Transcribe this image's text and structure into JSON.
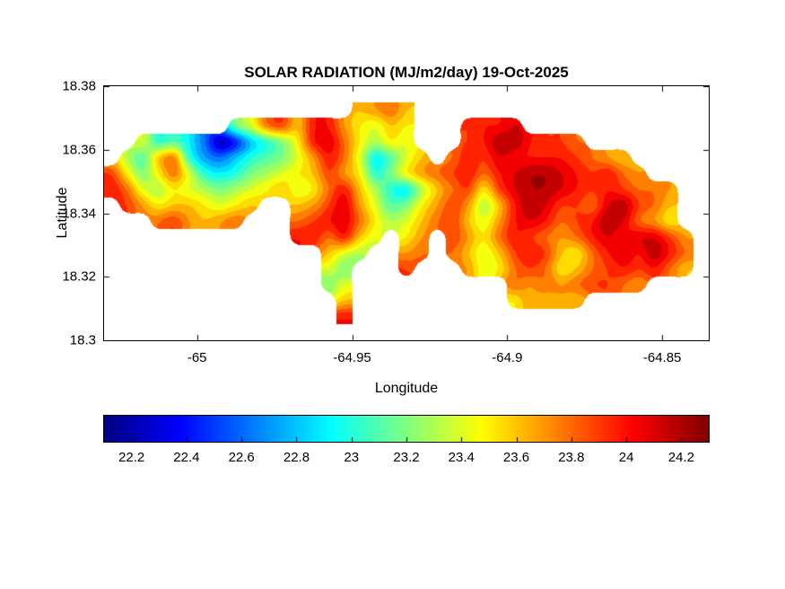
{
  "page": {
    "background": "#ffffff"
  },
  "chart_data": {
    "type": "heatmap",
    "title": "SOLAR RADIATION (MJ/m2/day) 19-Oct-2025",
    "xlabel": "Longitude",
    "ylabel": "Latitude",
    "xlim": [
      -65.03,
      -64.835
    ],
    "ylim": [
      18.3,
      18.38
    ],
    "grid_on": false,
    "colormap": "jet",
    "contour_interval": 0.1,
    "x_ticks": [
      {
        "value": -65,
        "label": "-65"
      },
      {
        "value": -64.95,
        "label": "-64.95"
      },
      {
        "value": -64.9,
        "label": "-64.9"
      },
      {
        "value": -64.85,
        "label": "-64.85"
      }
    ],
    "y_ticks": [
      {
        "value": 18.38,
        "label": "18.38"
      },
      {
        "value": 18.36,
        "label": "18.36"
      },
      {
        "value": 18.34,
        "label": "18.34"
      },
      {
        "value": 18.32,
        "label": "18.32"
      },
      {
        "value": 18.3,
        "label": "18.3"
      }
    ],
    "colorbar": {
      "orientation": "horizontal",
      "min": 22.1,
      "max": 24.3,
      "ticks": [
        {
          "value": 22.2,
          "label": "22.2"
        },
        {
          "value": 22.4,
          "label": "22.4"
        },
        {
          "value": 22.6,
          "label": "22.6"
        },
        {
          "value": 22.8,
          "label": "22.8"
        },
        {
          "value": 23,
          "label": "23"
        },
        {
          "value": 23.2,
          "label": "23.2"
        },
        {
          "value": 23.4,
          "label": "23.4"
        },
        {
          "value": 23.6,
          "label": "23.6"
        },
        {
          "value": 23.8,
          "label": "23.8"
        },
        {
          "value": 24,
          "label": "24"
        },
        {
          "value": 24.2,
          "label": "24.2"
        }
      ]
    },
    "grid": {
      "comment": "Estimated solar-radiation values (MJ/m2/day) on a 0.005-deg grid over the island; null = sea.",
      "lon_start": -65.03,
      "lon_step": 0.005,
      "lat_start": 18.375,
      "lat_step": -0.005,
      "values": [
        [
          null,
          null,
          null,
          null,
          null,
          null,
          null,
          null,
          null,
          null,
          null,
          null,
          null,
          null,
          null,
          null,
          23.6,
          23.7,
          23.8,
          23.6,
          null,
          null,
          null,
          null,
          null,
          null,
          null,
          null,
          null,
          null,
          null,
          null,
          null,
          null,
          null,
          null,
          null,
          null,
          null,
          null
        ],
        [
          null,
          null,
          null,
          null,
          null,
          null,
          null,
          null,
          23.2,
          23.4,
          23.8,
          23.9,
          23.6,
          24.0,
          24.0,
          23.7,
          23.5,
          23.4,
          23.6,
          23.5,
          null,
          null,
          null,
          23.9,
          24.0,
          24.0,
          24.1,
          null,
          null,
          null,
          null,
          null,
          null,
          null,
          null,
          null,
          null,
          null,
          null,
          null
        ],
        [
          null,
          null,
          23.4,
          23.0,
          23.1,
          22.9,
          22.6,
          22.2,
          22.4,
          22.8,
          23.0,
          23.2,
          23.5,
          24.0,
          24.1,
          23.8,
          23.5,
          23.3,
          23.5,
          23.4,
          null,
          null,
          null,
          23.9,
          24.0,
          24.2,
          24.2,
          24.0,
          23.9,
          23.9,
          23.8,
          null,
          null,
          null,
          null,
          null,
          null,
          null,
          null,
          null
        ],
        [
          null,
          23.3,
          23.1,
          23.6,
          23.8,
          23.0,
          22.7,
          22.6,
          22.8,
          23.0,
          23.1,
          23.2,
          23.4,
          23.7,
          24.0,
          23.8,
          23.4,
          22.9,
          23.1,
          23.4,
          23.6,
          null,
          23.8,
          24.0,
          23.9,
          24.1,
          24.0,
          24.0,
          24.0,
          24.0,
          23.9,
          23.8,
          23.7,
          23.6,
          null,
          null,
          null,
          null,
          null,
          null
        ],
        [
          23.9,
          23.5,
          23.2,
          23.5,
          23.8,
          23.4,
          23.0,
          22.9,
          23.0,
          23.2,
          23.3,
          23.4,
          23.5,
          23.6,
          23.9,
          23.7,
          23.5,
          23.0,
          23.2,
          23.5,
          23.7,
          23.8,
          23.9,
          24.0,
          23.8,
          24.0,
          24.1,
          24.2,
          24.2,
          24.1,
          24.0,
          23.9,
          24.0,
          23.8,
          23.7,
          null,
          null,
          null,
          null,
          null
        ],
        [
          24.0,
          23.8,
          23.4,
          23.3,
          23.5,
          23.4,
          23.3,
          23.2,
          23.3,
          23.4,
          23.5,
          23.6,
          23.4,
          23.5,
          23.8,
          24.0,
          23.6,
          23.3,
          23.0,
          22.9,
          23.3,
          23.6,
          23.8,
          23.9,
          23.5,
          23.9,
          24.1,
          24.2,
          24.2,
          24.1,
          24.0,
          23.9,
          24.0,
          23.9,
          23.8,
          23.8,
          23.7,
          null,
          null,
          null
        ],
        [
          null,
          23.9,
          23.7,
          23.5,
          23.6,
          23.6,
          23.5,
          23.4,
          23.5,
          23.6,
          null,
          null,
          23.6,
          23.7,
          23.9,
          24.1,
          23.7,
          23.4,
          23.1,
          23.2,
          23.5,
          23.7,
          23.9,
          23.7,
          23.3,
          23.6,
          24.0,
          24.2,
          24.1,
          23.9,
          23.9,
          23.8,
          24.1,
          24.2,
          23.9,
          23.8,
          23.6,
          null,
          null,
          null
        ],
        [
          null,
          null,
          null,
          23.8,
          23.9,
          23.7,
          23.6,
          23.7,
          23.8,
          null,
          null,
          null,
          23.8,
          23.9,
          24.0,
          24.1,
          23.8,
          23.5,
          23.3,
          23.4,
          23.6,
          23.8,
          23.9,
          23.6,
          23.4,
          23.7,
          24.0,
          24.1,
          24.0,
          23.8,
          23.9,
          24.0,
          24.2,
          24.1,
          23.8,
          23.7,
          23.5,
          null,
          null,
          null
        ],
        [
          null,
          null,
          null,
          null,
          null,
          null,
          null,
          null,
          null,
          null,
          null,
          null,
          24.0,
          24.0,
          23.8,
          24.0,
          23.6,
          23.4,
          null,
          23.5,
          23.7,
          null,
          23.9,
          23.7,
          23.5,
          23.8,
          24.0,
          23.9,
          23.8,
          23.7,
          23.8,
          24.0,
          24.1,
          24.0,
          24.1,
          24.1,
          23.9,
          23.7,
          null,
          null
        ],
        [
          null,
          null,
          null,
          null,
          null,
          null,
          null,
          null,
          null,
          null,
          null,
          null,
          null,
          null,
          23.6,
          23.4,
          23.3,
          null,
          null,
          23.7,
          23.8,
          null,
          23.8,
          23.6,
          23.4,
          23.6,
          23.9,
          24.0,
          23.9,
          23.6,
          23.5,
          23.8,
          24.0,
          24.1,
          24.0,
          24.2,
          24.0,
          23.8,
          null,
          null
        ],
        [
          null,
          null,
          null,
          null,
          null,
          null,
          null,
          null,
          null,
          null,
          null,
          null,
          null,
          null,
          23.4,
          23.2,
          null,
          null,
          null,
          23.9,
          null,
          null,
          null,
          23.7,
          23.4,
          23.5,
          23.8,
          23.9,
          23.8,
          23.5,
          23.6,
          23.8,
          23.9,
          24.0,
          23.9,
          24.0,
          23.8,
          23.6,
          null,
          null
        ],
        [
          null,
          null,
          null,
          null,
          null,
          null,
          null,
          null,
          null,
          null,
          null,
          null,
          null,
          null,
          23.2,
          23.4,
          null,
          null,
          null,
          null,
          null,
          null,
          null,
          null,
          null,
          null,
          23.8,
          23.7,
          23.8,
          23.7,
          23.8,
          23.9,
          23.9,
          23.8,
          23.7,
          null,
          null,
          null,
          null,
          null
        ],
        [
          null,
          null,
          null,
          null,
          null,
          null,
          null,
          null,
          null,
          null,
          null,
          null,
          null,
          null,
          null,
          23.6,
          null,
          null,
          null,
          null,
          null,
          null,
          null,
          null,
          null,
          null,
          23.5,
          23.7,
          23.6,
          23.7,
          23.6,
          null,
          null,
          null,
          null,
          null,
          null,
          null,
          null,
          null
        ],
        [
          null,
          null,
          null,
          null,
          null,
          null,
          null,
          null,
          null,
          null,
          null,
          null,
          null,
          null,
          null,
          24.0,
          null,
          null,
          null,
          null,
          null,
          null,
          null,
          null,
          null,
          null,
          null,
          null,
          null,
          null,
          null,
          null,
          null,
          null,
          null,
          null,
          null,
          null,
          null,
          null
        ]
      ]
    }
  }
}
